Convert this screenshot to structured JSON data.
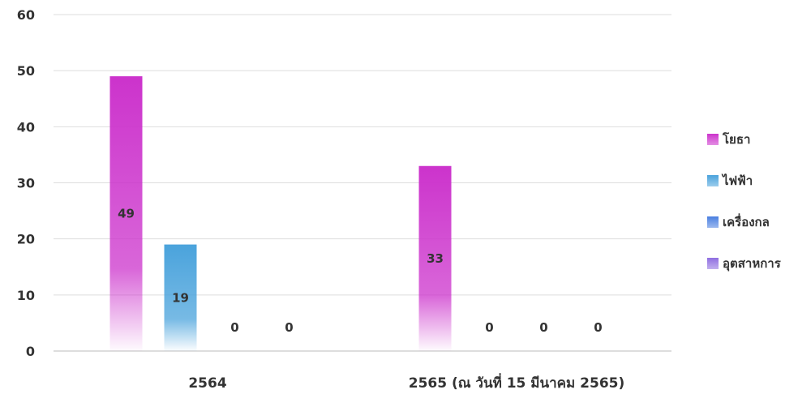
{
  "chart_data": {
    "type": "bar",
    "categories": [
      "2564",
      "2565 (ณ วันที่ 15 มีนาคม 2565)"
    ],
    "series": [
      {
        "name": "โยธา",
        "values": [
          49,
          33
        ],
        "color": "#cc33cc"
      },
      {
        "name": "ไฟฟ้า",
        "values": [
          19,
          0
        ],
        "color": "#4aa3dc"
      },
      {
        "name": "เครื่องกล",
        "values": [
          0,
          0
        ],
        "color": "#4a7fe0"
      },
      {
        "name": "อุตสาหการ",
        "values": [
          0,
          0
        ],
        "color": "#8f6ee0"
      }
    ],
    "ylim": [
      0,
      60
    ],
    "yticks": [
      0,
      10,
      20,
      30,
      40,
      50,
      60
    ],
    "grid": true,
    "legend_position": "right",
    "data_labels": true
  }
}
